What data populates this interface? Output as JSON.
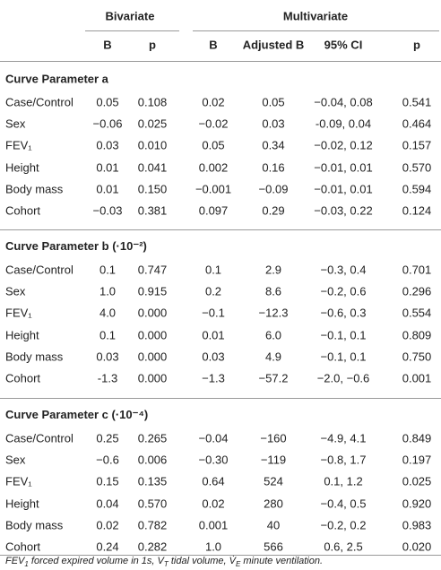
{
  "header": {
    "groups": [
      "Bivariate",
      "Multivariate"
    ],
    "columns": [
      "B",
      "p",
      "B",
      "Adjusted B",
      "95% CI",
      "p"
    ]
  },
  "sections": [
    {
      "title": "Curve Parameter a",
      "rows": [
        [
          "Case/Control",
          "0.05",
          "0.108",
          "0.02",
          "0.05",
          "−0.04, 0.08",
          "0.541"
        ],
        [
          "Sex",
          "−0.06",
          "0.025",
          "−0.02",
          "0.03",
          "-0.09, 0.04",
          "0.464"
        ],
        [
          "FEV₁",
          "0.03",
          "0.010",
          "0.05",
          "0.34",
          "−0.02, 0.12",
          "0.157"
        ],
        [
          "Height",
          "0.01",
          "0.041",
          "0.002",
          "0.16",
          "−0.01, 0.01",
          "0.570"
        ],
        [
          "Body mass",
          "0.01",
          "0.150",
          "−0.001",
          "−0.09",
          "−0.01, 0.01",
          "0.594"
        ],
        [
          "Cohort",
          "−0.03",
          "0.381",
          "0.097",
          "0.29",
          "−0.03, 0.22",
          "0.124"
        ]
      ]
    },
    {
      "title": "Curve Parameter b (·10⁻²)",
      "rows": [
        [
          "Case/Control",
          "0.1",
          "0.747",
          "0.1",
          "2.9",
          "−0.3, 0.4",
          "0.701"
        ],
        [
          "Sex",
          "1.0",
          "0.915",
          "0.2",
          "8.6",
          "−0.2, 0.6",
          "0.296"
        ],
        [
          "FEV₁",
          "4.0",
          "0.000",
          "−0.1",
          "−12.3",
          "−0.6, 0.3",
          "0.554"
        ],
        [
          "Height",
          "0.1",
          "0.000",
          "0.01",
          "6.0",
          "−0.1, 0.1",
          "0.809"
        ],
        [
          "Body mass",
          "0.03",
          "0.000",
          "0.03",
          "4.9",
          "−0.1, 0.1",
          "0.750"
        ],
        [
          "Cohort",
          "-1.3",
          "0.000",
          "−1.3",
          "−57.2",
          "−2.0, −0.6",
          "0.001"
        ]
      ]
    },
    {
      "title": "Curve Parameter c (·10⁻⁴)",
      "rows": [
        [
          "Case/Control",
          "0.25",
          "0.265",
          "−0.04",
          "−160",
          "−4.9, 4.1",
          "0.849"
        ],
        [
          "Sex",
          "−0.6",
          "0.006",
          "−0.30",
          "−119",
          "−0.8, 1.7",
          "0.197"
        ],
        [
          "FEV₁",
          "0.15",
          "0.135",
          "0.64",
          "524",
          "0.1, 1.2",
          "0.025"
        ],
        [
          "Height",
          "0.04",
          "0.570",
          "0.02",
          "280",
          "−0.4, 0.5",
          "0.920"
        ],
        [
          "Body mass",
          "0.02",
          "0.782",
          "0.001",
          "40",
          "−0.2, 0.2",
          "0.983"
        ],
        [
          "Cohort",
          "0.24",
          "0.282",
          "1.0",
          "566",
          "0.6, 2.5",
          "0.020"
        ]
      ]
    }
  ],
  "footnote": [
    "FEV",
    "1",
    " forced expired volume in 1s, V",
    "T",
    " tidal volume, V̇",
    "E",
    " minute ventilation."
  ]
}
